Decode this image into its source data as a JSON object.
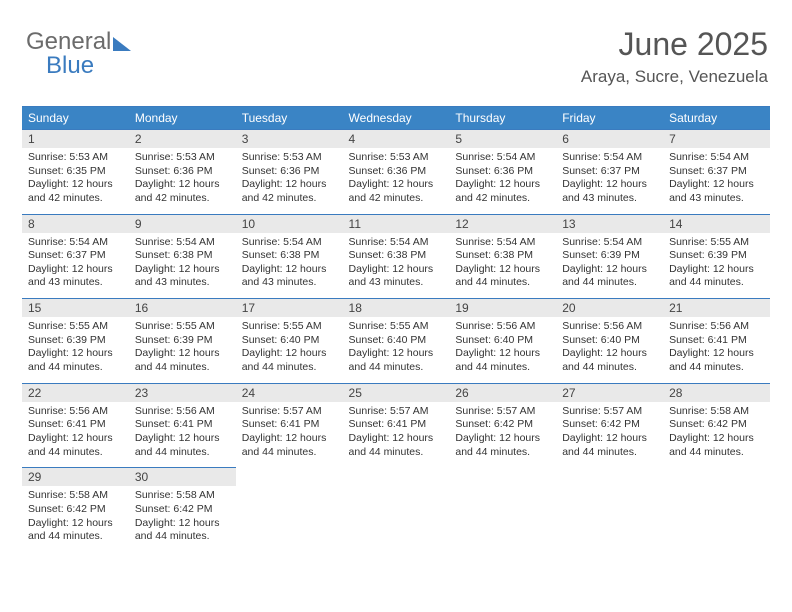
{
  "logo": {
    "part1": "General",
    "part2": "Blue"
  },
  "title": "June 2025",
  "location": "Araya, Sucre, Venezuela",
  "colors": {
    "header_bg": "#3a84c5",
    "header_border": "#3a7bbf",
    "daynum_bg": "#e9e9e9",
    "text": "#333333",
    "logo_gray": "#6b6b6b",
    "logo_blue": "#3a7bbf"
  },
  "typography": {
    "title_fontsize": 32,
    "location_fontsize": 17,
    "dayheader_fontsize": 12,
    "daynum_fontsize": 12,
    "body_fontsize": 10.5
  },
  "dayHeaders": [
    "Sunday",
    "Monday",
    "Tuesday",
    "Wednesday",
    "Thursday",
    "Friday",
    "Saturday"
  ],
  "weeks": [
    [
      {
        "n": "1",
        "sr": "5:53 AM",
        "ss": "6:35 PM",
        "dl": "12 hours and 42 minutes."
      },
      {
        "n": "2",
        "sr": "5:53 AM",
        "ss": "6:36 PM",
        "dl": "12 hours and 42 minutes."
      },
      {
        "n": "3",
        "sr": "5:53 AM",
        "ss": "6:36 PM",
        "dl": "12 hours and 42 minutes."
      },
      {
        "n": "4",
        "sr": "5:53 AM",
        "ss": "6:36 PM",
        "dl": "12 hours and 42 minutes."
      },
      {
        "n": "5",
        "sr": "5:54 AM",
        "ss": "6:36 PM",
        "dl": "12 hours and 42 minutes."
      },
      {
        "n": "6",
        "sr": "5:54 AM",
        "ss": "6:37 PM",
        "dl": "12 hours and 43 minutes."
      },
      {
        "n": "7",
        "sr": "5:54 AM",
        "ss": "6:37 PM",
        "dl": "12 hours and 43 minutes."
      }
    ],
    [
      {
        "n": "8",
        "sr": "5:54 AM",
        "ss": "6:37 PM",
        "dl": "12 hours and 43 minutes."
      },
      {
        "n": "9",
        "sr": "5:54 AM",
        "ss": "6:38 PM",
        "dl": "12 hours and 43 minutes."
      },
      {
        "n": "10",
        "sr": "5:54 AM",
        "ss": "6:38 PM",
        "dl": "12 hours and 43 minutes."
      },
      {
        "n": "11",
        "sr": "5:54 AM",
        "ss": "6:38 PM",
        "dl": "12 hours and 43 minutes."
      },
      {
        "n": "12",
        "sr": "5:54 AM",
        "ss": "6:38 PM",
        "dl": "12 hours and 44 minutes."
      },
      {
        "n": "13",
        "sr": "5:54 AM",
        "ss": "6:39 PM",
        "dl": "12 hours and 44 minutes."
      },
      {
        "n": "14",
        "sr": "5:55 AM",
        "ss": "6:39 PM",
        "dl": "12 hours and 44 minutes."
      }
    ],
    [
      {
        "n": "15",
        "sr": "5:55 AM",
        "ss": "6:39 PM",
        "dl": "12 hours and 44 minutes."
      },
      {
        "n": "16",
        "sr": "5:55 AM",
        "ss": "6:39 PM",
        "dl": "12 hours and 44 minutes."
      },
      {
        "n": "17",
        "sr": "5:55 AM",
        "ss": "6:40 PM",
        "dl": "12 hours and 44 minutes."
      },
      {
        "n": "18",
        "sr": "5:55 AM",
        "ss": "6:40 PM",
        "dl": "12 hours and 44 minutes."
      },
      {
        "n": "19",
        "sr": "5:56 AM",
        "ss": "6:40 PM",
        "dl": "12 hours and 44 minutes."
      },
      {
        "n": "20",
        "sr": "5:56 AM",
        "ss": "6:40 PM",
        "dl": "12 hours and 44 minutes."
      },
      {
        "n": "21",
        "sr": "5:56 AM",
        "ss": "6:41 PM",
        "dl": "12 hours and 44 minutes."
      }
    ],
    [
      {
        "n": "22",
        "sr": "5:56 AM",
        "ss": "6:41 PM",
        "dl": "12 hours and 44 minutes."
      },
      {
        "n": "23",
        "sr": "5:56 AM",
        "ss": "6:41 PM",
        "dl": "12 hours and 44 minutes."
      },
      {
        "n": "24",
        "sr": "5:57 AM",
        "ss": "6:41 PM",
        "dl": "12 hours and 44 minutes."
      },
      {
        "n": "25",
        "sr": "5:57 AM",
        "ss": "6:41 PM",
        "dl": "12 hours and 44 minutes."
      },
      {
        "n": "26",
        "sr": "5:57 AM",
        "ss": "6:42 PM",
        "dl": "12 hours and 44 minutes."
      },
      {
        "n": "27",
        "sr": "5:57 AM",
        "ss": "6:42 PM",
        "dl": "12 hours and 44 minutes."
      },
      {
        "n": "28",
        "sr": "5:58 AM",
        "ss": "6:42 PM",
        "dl": "12 hours and 44 minutes."
      }
    ],
    [
      {
        "n": "29",
        "sr": "5:58 AM",
        "ss": "6:42 PM",
        "dl": "12 hours and 44 minutes."
      },
      {
        "n": "30",
        "sr": "5:58 AM",
        "ss": "6:42 PM",
        "dl": "12 hours and 44 minutes."
      },
      null,
      null,
      null,
      null,
      null
    ]
  ],
  "labels": {
    "sunrise": "Sunrise:",
    "sunset": "Sunset:",
    "daylight": "Daylight:"
  }
}
